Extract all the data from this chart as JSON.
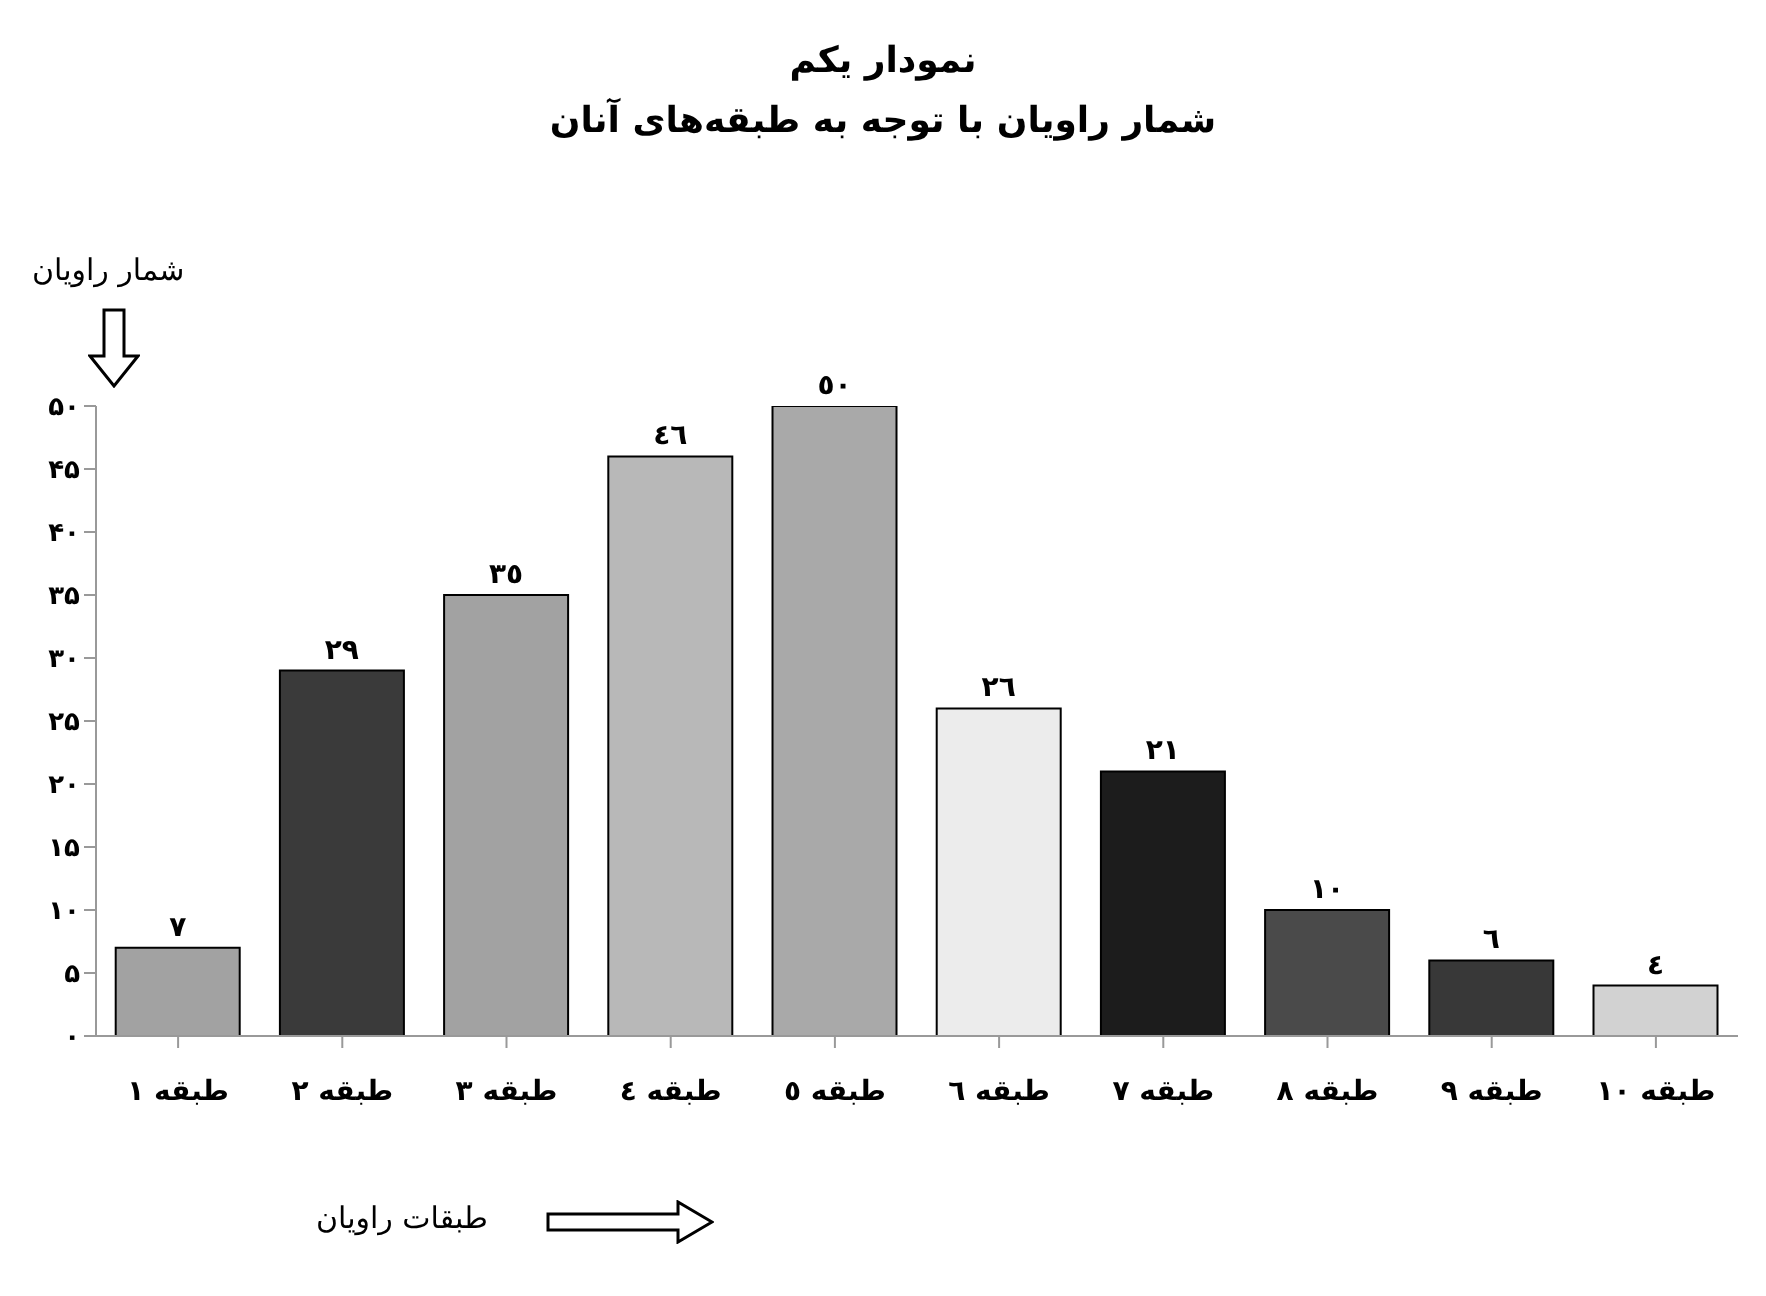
{
  "chart_data": {
    "type": "bar",
    "title": "نمودار یکم",
    "subtitle": "شمار راویان با توجه به طبقه‌های آنان",
    "xlabel": "طبقات راویان",
    "ylabel": "شمار راویان",
    "categories": [
      "طبقه ١",
      "طبقه ٢",
      "طبقه ٣",
      "طبقه ٤",
      "طبقه ٥",
      "طبقه ٦",
      "طبقه ٧",
      "طبقه ٨",
      "طبقه ٩",
      "طبقه ١٠"
    ],
    "values": [
      7,
      29,
      35,
      46,
      50,
      26,
      21,
      10,
      6,
      4
    ],
    "colors": [
      "#a2a2a2",
      "#3a3a3a",
      "#a2a2a2",
      "#b8b8b8",
      "#a9a9a9",
      "#ececec",
      "#1c1c1c",
      "#4a4a4a",
      "#383838",
      "#d2d2d2"
    ],
    "value_labels": [
      "٧",
      "٢٩",
      "٣٥",
      "٤٦",
      "٥٠",
      "٢٦",
      "٢١",
      "١٠",
      "٦",
      "٤"
    ],
    "ylim": [
      0,
      50
    ],
    "yticks": [
      {
        "value": 0,
        "label": "۰"
      },
      {
        "value": 5,
        "label": "۵"
      },
      {
        "value": 10,
        "label": "۱۰"
      },
      {
        "value": 15,
        "label": "۱۵"
      },
      {
        "value": 20,
        "label": "۲۰"
      },
      {
        "value": 25,
        "label": "۲۵"
      },
      {
        "value": 30,
        "label": "۳۰"
      },
      {
        "value": 35,
        "label": "۳۵"
      },
      {
        "value": 40,
        "label": "۴۰"
      },
      {
        "value": 45,
        "label": "۴۵"
      },
      {
        "value": 50,
        "label": "۵۰"
      }
    ],
    "grid": false,
    "legend": false
  }
}
